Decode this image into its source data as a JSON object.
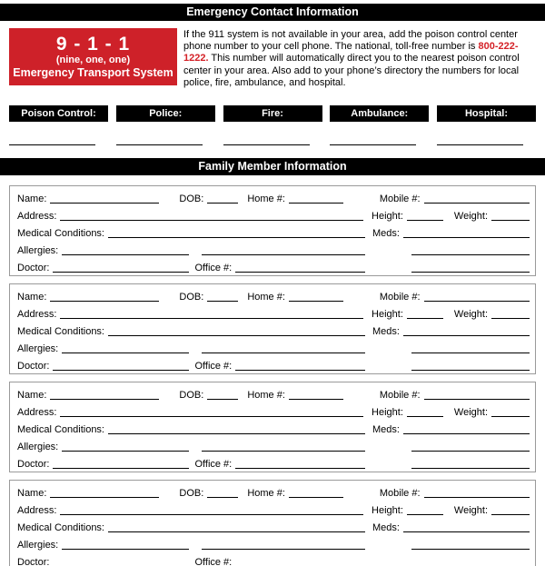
{
  "page": {
    "title_bar": "Emergency Contact Information",
    "family_bar": "Family Member Information"
  },
  "emergency_911": {
    "number": "9 - 1 - 1",
    "phonetic": "(nine, one, one)",
    "caption": "Emergency Transport System"
  },
  "instructions": {
    "text_before": "If the 911 system is not available in your area, add the poison control center phone number to your cell phone. The national, toll-free number is ",
    "phone_number": "800-222-1222.",
    "text_after": " This number will automatically direct you to the nearest poison control center in your area. Also add to your phone’s directory the numbers for local police, fire, ambulance, and hospital."
  },
  "emergency_contacts": {
    "labels": [
      "Poison Control:",
      "Police:",
      "Fire:",
      "Ambulance:",
      "Hospital:"
    ]
  },
  "family_member_form": {
    "member_count": 4,
    "field_labels": {
      "name": "Name:",
      "dob": "DOB:",
      "home_phone": "Home #:",
      "mobile_phone": "Mobile #:",
      "address": "Address:",
      "height": "Height:",
      "weight": "Weight:",
      "medical_conditions": "Medical Conditions:",
      "meds": "Meds:",
      "allergies": "Allergies:",
      "doctor": "Doctor:",
      "office_phone": "Office #:"
    }
  },
  "colors": {
    "accent_red": "#ce2129",
    "phone_red": "#d42127",
    "bar_black": "#000000"
  }
}
